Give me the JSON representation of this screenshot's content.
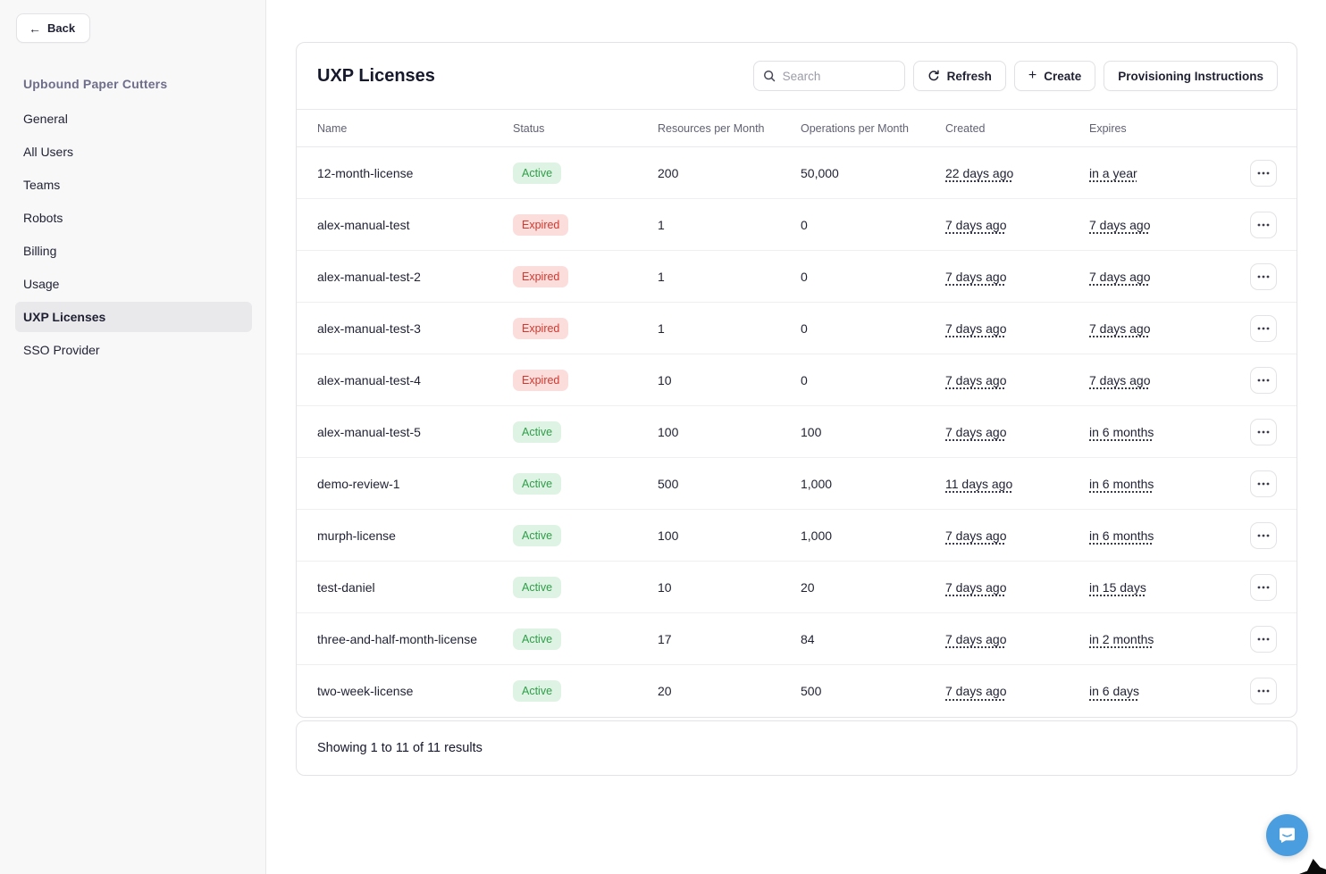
{
  "sidebar": {
    "back_label": "Back",
    "org_name": "Upbound Paper Cutters",
    "items": [
      {
        "label": "General",
        "active": false
      },
      {
        "label": "All Users",
        "active": false
      },
      {
        "label": "Teams",
        "active": false
      },
      {
        "label": "Robots",
        "active": false
      },
      {
        "label": "Billing",
        "active": false
      },
      {
        "label": "Usage",
        "active": false
      },
      {
        "label": "UXP Licenses",
        "active": true
      },
      {
        "label": "SSO Provider",
        "active": false
      }
    ]
  },
  "header": {
    "title": "UXP Licenses",
    "search_placeholder": "Search",
    "refresh_label": "Refresh",
    "create_label": "Create",
    "provisioning_label": "Provisioning Instructions"
  },
  "table": {
    "columns": [
      "Name",
      "Status",
      "Resources per Month",
      "Operations per Month",
      "Created",
      "Expires"
    ],
    "rows": [
      {
        "name": "12-month-license",
        "status": "Active",
        "resources": "200",
        "operations": "50,000",
        "created": "22 days ago",
        "expires": "in a year"
      },
      {
        "name": "alex-manual-test",
        "status": "Expired",
        "resources": "1",
        "operations": "0",
        "created": "7 days ago",
        "expires": "7 days ago"
      },
      {
        "name": "alex-manual-test-2",
        "status": "Expired",
        "resources": "1",
        "operations": "0",
        "created": "7 days ago",
        "expires": "7 days ago"
      },
      {
        "name": "alex-manual-test-3",
        "status": "Expired",
        "resources": "1",
        "operations": "0",
        "created": "7 days ago",
        "expires": "7 days ago"
      },
      {
        "name": "alex-manual-test-4",
        "status": "Expired",
        "resources": "10",
        "operations": "0",
        "created": "7 days ago",
        "expires": "7 days ago"
      },
      {
        "name": "alex-manual-test-5",
        "status": "Active",
        "resources": "100",
        "operations": "100",
        "created": "7 days ago",
        "expires": "in 6 months"
      },
      {
        "name": "demo-review-1",
        "status": "Active",
        "resources": "500",
        "operations": "1,000",
        "created": "11 days ago",
        "expires": "in 6 months"
      },
      {
        "name": "murph-license",
        "status": "Active",
        "resources": "100",
        "operations": "1,000",
        "created": "7 days ago",
        "expires": "in 6 months"
      },
      {
        "name": "test-daniel",
        "status": "Active",
        "resources": "10",
        "operations": "20",
        "created": "7 days ago",
        "expires": "in 15 days"
      },
      {
        "name": "three-and-half-month-license",
        "status": "Active",
        "resources": "17",
        "operations": "84",
        "created": "7 days ago",
        "expires": "in 2 months"
      },
      {
        "name": "two-week-license",
        "status": "Active",
        "resources": "20",
        "operations": "500",
        "created": "7 days ago",
        "expires": "in 6 days"
      }
    ],
    "footer": "Showing 1 to 11 of 11 results"
  },
  "colors": {
    "active_badge_bg": "#DFF3E5",
    "active_badge_text": "#2E9E47",
    "expired_badge_bg": "#FBDEDB",
    "expired_badge_text": "#D5362E",
    "chat_widget_blue": "#4A9DDE"
  }
}
